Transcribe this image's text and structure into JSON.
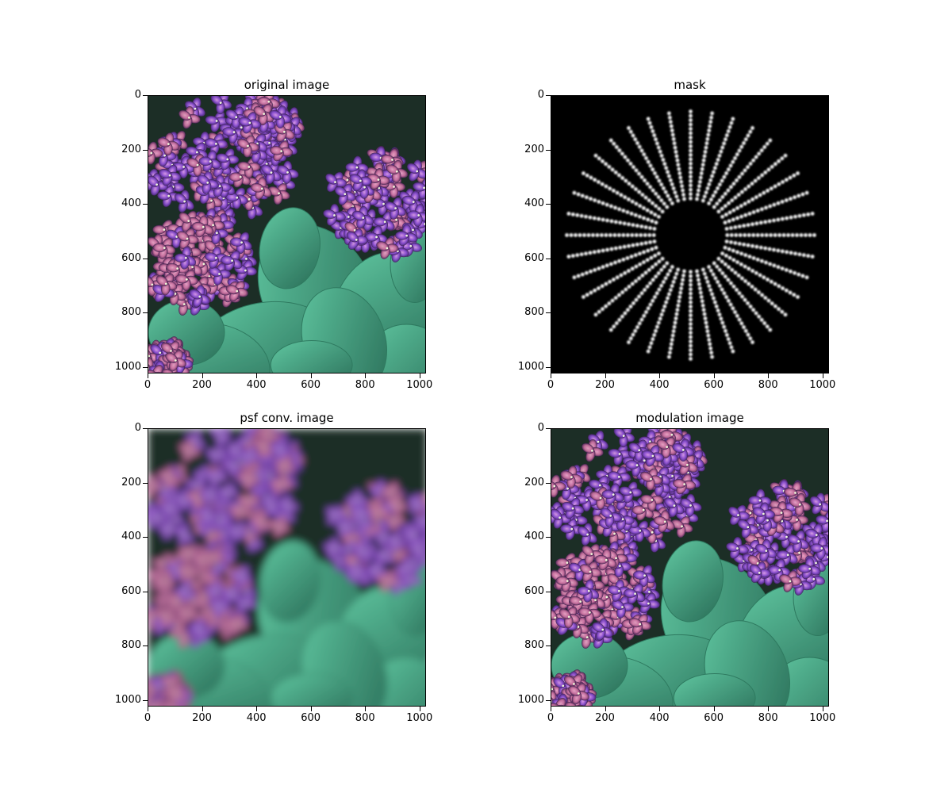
{
  "figure": {
    "panels": [
      {
        "id": "original",
        "title": "original image",
        "kind": "flowers-sharp"
      },
      {
        "id": "mask",
        "title": "mask",
        "kind": "starburst-mask"
      },
      {
        "id": "psf",
        "title": "psf conv. image",
        "kind": "flowers-blur"
      },
      {
        "id": "modulation",
        "title": "modulation image",
        "kind": "flowers-sharp"
      }
    ],
    "y_ticks": [
      "0",
      "200",
      "400",
      "600",
      "800",
      "1000"
    ],
    "x_ticks": [
      "0",
      "200",
      "400",
      "600",
      "800",
      "1000"
    ],
    "extent": 1024
  },
  "colors": {
    "leaf": "#3f9a7e",
    "leaf_light": "#5fc6a0",
    "petal_violet": "#8a4fcf",
    "petal_pink": "#c8709f",
    "background_dark": "#1d2f25"
  }
}
